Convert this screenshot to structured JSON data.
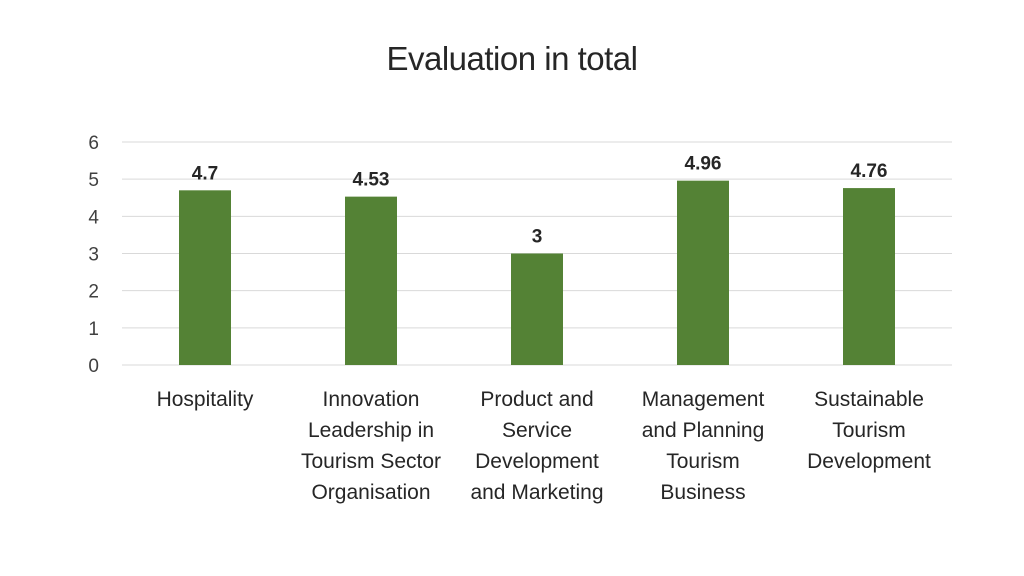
{
  "chart_data": {
    "type": "bar",
    "title": "Evaluation in total",
    "categories": [
      [
        "Hospitality"
      ],
      [
        "Innovation",
        "Leadership in",
        "Tourism Sector",
        "Organisation"
      ],
      [
        "Product and",
        "Service",
        "Development",
        "and Marketing"
      ],
      [
        "Management",
        "and Planning",
        "Tourism",
        "Business"
      ],
      [
        "Sustainable",
        "Tourism",
        "Development"
      ]
    ],
    "values": [
      4.7,
      4.53,
      3,
      4.96,
      4.76
    ],
    "data_labels": [
      "4.7",
      "4.53",
      "3",
      "4.96",
      "4.76"
    ],
    "ylim": [
      0,
      6
    ],
    "yticks": [
      "0",
      "1",
      "2",
      "3",
      "4",
      "5",
      "6"
    ],
    "grid": true,
    "bar_color": "#548235",
    "grid_color": "#d9d9d9"
  }
}
